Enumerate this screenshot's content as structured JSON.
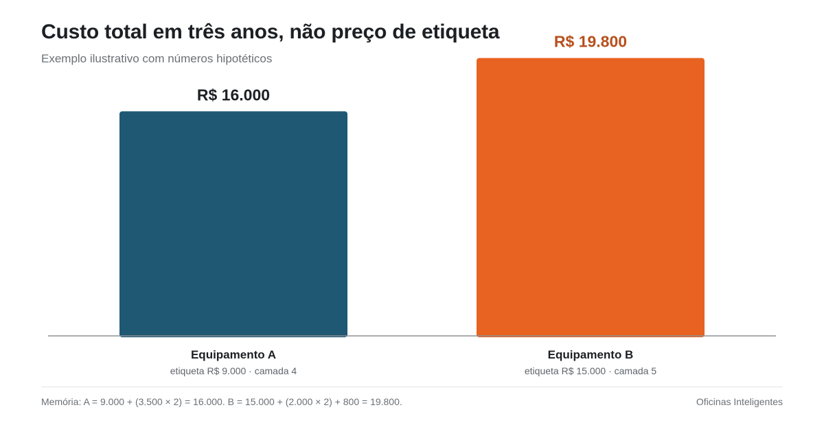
{
  "header": {
    "title": "Custo total em três anos, não preço de etiqueta",
    "subtitle": "Exemplo ilustrativo com números hipotéticos"
  },
  "chart_data": {
    "type": "bar",
    "categories": [
      "Equipamento A",
      "Equipamento B"
    ],
    "values": [
      16000,
      19800
    ],
    "value_labels": [
      "R$ 16.000",
      "R$ 19.800"
    ],
    "sublabels": [
      "etiqueta R$ 9.000 · camada 4",
      "etiqueta R$ 15.000 · camada 5"
    ],
    "colors": [
      "#1f5873",
      "#e86221"
    ],
    "value_label_colors": [
      "#1c1f23",
      "#b84f1c"
    ],
    "ylim": [
      0,
      21000
    ],
    "grid": false,
    "xlabel": "",
    "ylabel": ""
  },
  "footer": {
    "note": "Memória: A = 9.000 + (3.500 × 2) = 16.000. B = 15.000 + (2.000 × 2) + 800 = 19.800.",
    "credit": "Oficinas Inteligentes"
  }
}
